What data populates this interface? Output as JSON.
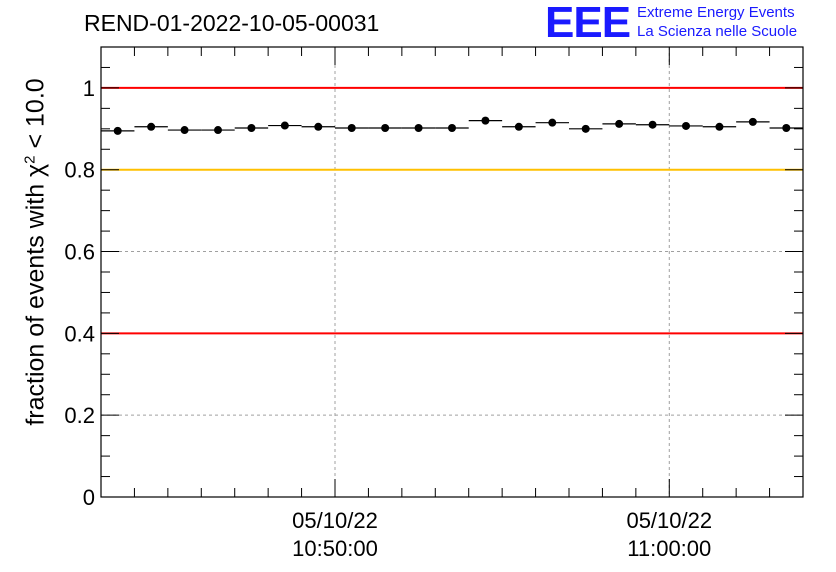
{
  "chart_data": {
    "type": "scatter",
    "title": "REND-01-2022-10-05-00031",
    "ylabel": "fraction of events with χ",
    "ylabel_sup": "2",
    "ylabel_tail": " < 10.0",
    "ylim": [
      0,
      1.1
    ],
    "yticks": [
      "0",
      "0.2",
      "0.4",
      "0.6",
      "0.8",
      "1"
    ],
    "yticks_values": [
      0,
      0.2,
      0.4,
      0.6,
      0.8,
      1.0
    ],
    "xlim": [
      "10:43:00",
      "11:04:00"
    ],
    "xtick_labels": [
      {
        "date": "05/10/22",
        "time": "10:50:00"
      },
      {
        "date": "05/10/22",
        "time": "11:00:00"
      }
    ],
    "grid": true,
    "reference_lines": [
      {
        "y": 1.0,
        "color": "#ff0000"
      },
      {
        "y": 0.8,
        "color": "#ffc000"
      },
      {
        "y": 0.4,
        "color": "#ff0000"
      }
    ],
    "marker_color": "#000000",
    "points": [
      {
        "x": "10:43:30",
        "y": 0.895
      },
      {
        "x": "10:44:30",
        "y": 0.905
      },
      {
        "x": "10:45:30",
        "y": 0.897
      },
      {
        "x": "10:46:30",
        "y": 0.897
      },
      {
        "x": "10:47:30",
        "y": 0.902
      },
      {
        "x": "10:48:30",
        "y": 0.908
      },
      {
        "x": "10:49:30",
        "y": 0.905
      },
      {
        "x": "10:50:30",
        "y": 0.902
      },
      {
        "x": "10:51:30",
        "y": 0.902
      },
      {
        "x": "10:52:30",
        "y": 0.902
      },
      {
        "x": "10:53:30",
        "y": 0.902
      },
      {
        "x": "10:54:30",
        "y": 0.92
      },
      {
        "x": "10:55:30",
        "y": 0.905
      },
      {
        "x": "10:56:30",
        "y": 0.915
      },
      {
        "x": "10:57:30",
        "y": 0.9
      },
      {
        "x": "10:58:30",
        "y": 0.912
      },
      {
        "x": "10:59:30",
        "y": 0.91
      },
      {
        "x": "11:00:30",
        "y": 0.907
      },
      {
        "x": "11:01:30",
        "y": 0.905
      },
      {
        "x": "11:02:30",
        "y": 0.917
      },
      {
        "x": "11:03:30",
        "y": 0.902
      }
    ]
  },
  "logo": {
    "mark": "EEE",
    "line1": "Extreme Energy Events",
    "line2": "La Scienza nelle Scuole"
  }
}
